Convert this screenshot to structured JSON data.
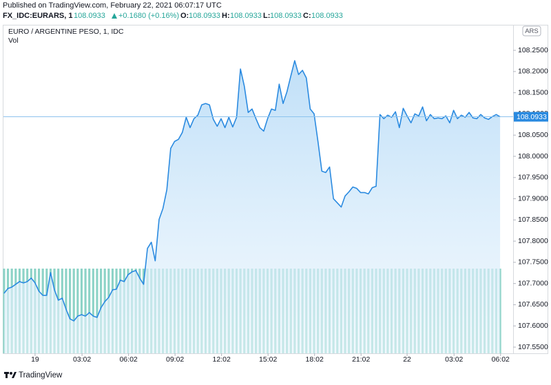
{
  "header": {
    "published": "Published on TradingView.com, February 22, 2021 06:07:17 UTC",
    "symbol": "FX_IDC:EURARS, 1",
    "price": "108.0933",
    "change": "+0.1680 (+0.16%)",
    "ohlc": [
      {
        "label": "O:",
        "value": "108.0933"
      },
      {
        "label": "H:",
        "value": "108.0933"
      },
      {
        "label": "L:",
        "value": "108.0933"
      },
      {
        "label": "C:",
        "value": "108.0933"
      }
    ]
  },
  "footer": {
    "brand": "TradingView"
  },
  "chart_data": {
    "type": "area",
    "title": "EURO / ARGENTINE PESO, 1, IDC",
    "currency": "ARS",
    "x": [
      -2,
      -1.75,
      -1.5,
      -1.25,
      -1,
      -0.75,
      -0.5,
      -0.25,
      0,
      0.25,
      0.5,
      0.75,
      1,
      1.25,
      1.5,
      1.75,
      2,
      2.25,
      2.5,
      2.75,
      3,
      3.25,
      3.5,
      3.75,
      4,
      4.25,
      4.5,
      4.75,
      5,
      5.25,
      5.5,
      5.75,
      6,
      6.25,
      6.5,
      6.75,
      7,
      7.25,
      7.5,
      7.75,
      8,
      8.25,
      8.5,
      8.75,
      9,
      9.25,
      9.5,
      9.75,
      10,
      10.25,
      10.5,
      10.75,
      11,
      11.25,
      11.5,
      11.75,
      12,
      12.25,
      12.5,
      12.75,
      13,
      13.25,
      13.5,
      13.75,
      14,
      14.25,
      14.5,
      14.75,
      15,
      15.25,
      15.5,
      15.75,
      16,
      16.25,
      16.5,
      16.75,
      17,
      17.25,
      17.5,
      17.75,
      18,
      18.25,
      18.5,
      18.75,
      19,
      19.25,
      19.5,
      19.75,
      20,
      20.25,
      20.5,
      20.75,
      21,
      21.25,
      21.5,
      21.75,
      22,
      22.25,
      22.5,
      22.75,
      23,
      23.25,
      23.5,
      23.75,
      24,
      24.25,
      24.5,
      24.75,
      25,
      25.25,
      25.5,
      25.75,
      26,
      26.25,
      26.5,
      26.75,
      27,
      27.25,
      27.5,
      27.75,
      28,
      28.25,
      28.5,
      28.75,
      29,
      29.25,
      29.5,
      29.75,
      30
    ],
    "series": [
      {
        "name": "EURARS",
        "color": "#2a8ae0",
        "values": [
          107.6769,
          107.6883,
          107.6916,
          107.6981,
          107.7046,
          107.7014,
          107.7046,
          107.7128,
          107.7014,
          107.6818,
          107.6721,
          107.6721,
          107.7258,
          107.6851,
          107.6607,
          107.6655,
          107.6395,
          107.6167,
          107.6118,
          107.6232,
          107.6265,
          107.6232,
          107.6314,
          107.6232,
          107.62,
          107.6428,
          107.6574,
          107.6672,
          107.6851,
          107.6867,
          107.7079,
          107.7046,
          107.7209,
          107.7274,
          107.7307,
          107.7128,
          107.6981,
          107.7828,
          107.7974,
          107.7535,
          107.8511,
          107.8772,
          107.9211,
          108.0188,
          108.0351,
          108.04,
          108.0563,
          108.0921,
          108.0677,
          108.0888,
          108.097,
          108.1214,
          108.1246,
          108.1214,
          108.0872,
          108.0709,
          108.0888,
          108.0677,
          108.0921,
          108.0693,
          108.0921,
          108.206,
          108.1653,
          108.1035,
          108.1116,
          108.0888,
          108.0677,
          108.0595,
          108.0888,
          108.1116,
          108.1084,
          108.1702,
          108.1246,
          108.1523,
          108.1898,
          108.2256,
          108.193,
          108.2028,
          108.1849,
          108.1116,
          108.1002,
          108.0351,
          107.9651,
          107.9618,
          107.9749,
          107.9,
          107.8902,
          107.8804,
          107.9065,
          107.9163,
          107.9277,
          107.9244,
          107.9146,
          107.9146,
          107.9114,
          107.926,
          107.9293,
          108.0986,
          108.0888,
          108.097,
          108.0921,
          108.1051,
          108.0677,
          108.1132,
          108.0953,
          108.0791,
          108.1002,
          108.0953,
          108.1165,
          108.0839,
          108.0986,
          108.0888,
          108.0905,
          108.0888,
          108.0953,
          108.0791,
          108.1084,
          108.0888,
          108.097,
          108.0921,
          108.1035,
          108.0905,
          108.0888,
          108.0986,
          108.0905,
          108.0872,
          108.0937,
          108.0986,
          108.0933
        ]
      },
      {
        "name": "Vol",
        "color": "#8dd3c7",
        "values": [
          1,
          1,
          1,
          1,
          1,
          1,
          1,
          1,
          1,
          1,
          1,
          1,
          1,
          1,
          1,
          1,
          1,
          1,
          1,
          1,
          1,
          1,
          1,
          1,
          1,
          1,
          1,
          1,
          1,
          1,
          1,
          1,
          1,
          1,
          1,
          1,
          1,
          1,
          1,
          1,
          1,
          1,
          1,
          1,
          1,
          1,
          1,
          1,
          1,
          1,
          1,
          1,
          1,
          1,
          1,
          1,
          1,
          1,
          1,
          1,
          1,
          1,
          1,
          1,
          1,
          1,
          1,
          1,
          1,
          1,
          1,
          1,
          1,
          1,
          1,
          1,
          1,
          1,
          1,
          1,
          1,
          1,
          1,
          1,
          1,
          1,
          1,
          1,
          1,
          1,
          1,
          1,
          1,
          1,
          1,
          1,
          1,
          1,
          1,
          1,
          1,
          1,
          1,
          1,
          1,
          1,
          1,
          1,
          1,
          1,
          1,
          1,
          1,
          1,
          1,
          1,
          1,
          1,
          1,
          1,
          1,
          1,
          1,
          1,
          1,
          1,
          1,
          1,
          1
        ]
      }
    ],
    "xlim": [
      -2.04,
      30.84
    ],
    "xticks": [
      {
        "value": 0,
        "label": "19"
      },
      {
        "value": 3.03,
        "label": "03:02"
      },
      {
        "value": 6.03,
        "label": "06:02"
      },
      {
        "value": 9.03,
        "label": "09:02"
      },
      {
        "value": 12.03,
        "label": "12:02"
      },
      {
        "value": 15.03,
        "label": "15:02"
      },
      {
        "value": 18.03,
        "label": "18:02"
      },
      {
        "value": 21.03,
        "label": "21:02"
      },
      {
        "value": 24,
        "label": "22"
      },
      {
        "value": 27.03,
        "label": "03:02"
      },
      {
        "value": 30.03,
        "label": "06:02"
      }
    ],
    "ylim": [
      107.5354,
      108.3086
    ],
    "yticks": [
      {
        "value": 108.25,
        "label": "108.2500"
      },
      {
        "value": 108.2,
        "label": "108.2000"
      },
      {
        "value": 108.15,
        "label": "108.1500"
      },
      {
        "value": 108.1,
        "label": "108.1000"
      },
      {
        "value": 108.05,
        "label": "108.0500"
      },
      {
        "value": 108,
        "label": "108.0000"
      },
      {
        "value": 107.95,
        "label": "107.9500"
      },
      {
        "value": 107.9,
        "label": "107.9000"
      },
      {
        "value": 107.85,
        "label": "107.8500"
      },
      {
        "value": 107.8,
        "label": "107.8000"
      },
      {
        "value": 107.75,
        "label": "107.7500"
      },
      {
        "value": 107.7,
        "label": "107.7000"
      },
      {
        "value": 107.65,
        "label": "107.6500"
      },
      {
        "value": 107.6,
        "label": "107.6000"
      },
      {
        "value": 107.55,
        "label": "107.5500"
      }
    ],
    "grid": false
  }
}
